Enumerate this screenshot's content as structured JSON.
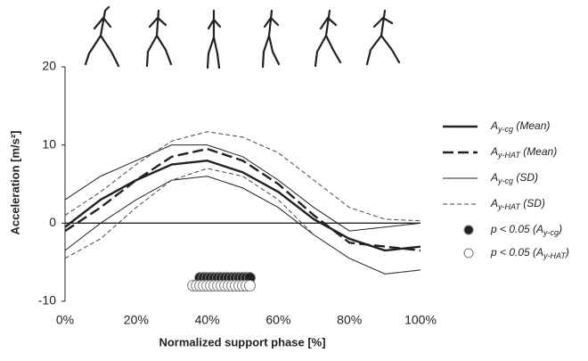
{
  "chart_data": {
    "type": "line",
    "ylabel": "Acceleration [m/s²]",
    "xlabel": "Normalized support phase [%]",
    "x": [
      0,
      10,
      20,
      30,
      40,
      50,
      60,
      70,
      80,
      90,
      100
    ],
    "xlim": [
      0,
      100
    ],
    "xticks": [
      {
        "value": 0,
        "label": "0%"
      },
      {
        "value": 20,
        "label": "20%"
      },
      {
        "value": 40,
        "label": "40%"
      },
      {
        "value": 60,
        "label": "60%"
      },
      {
        "value": 80,
        "label": "80%"
      },
      {
        "value": 100,
        "label": "100%"
      }
    ],
    "ylim": [
      -10,
      20
    ],
    "yticks": [
      -10,
      0,
      10,
      20
    ],
    "series": [
      {
        "name": {
          "symbol": "A",
          "sub": "y-cg",
          "suffix": " (Mean)"
        },
        "color": "#222",
        "style": "solid-thick",
        "values": [
          -0.5,
          3,
          5.5,
          7.5,
          8,
          6.5,
          4,
          0.5,
          -2,
          -3.5,
          -3
        ]
      },
      {
        "name": {
          "symbol": "A",
          "sub": "y-HAT",
          "suffix": " (Mean)"
        },
        "color": "#222",
        "style": "dashed-thick",
        "values": [
          -1,
          2,
          5.5,
          8.5,
          9.5,
          8,
          5,
          1,
          -2.5,
          -3,
          -3.5
        ]
      },
      {
        "name": {
          "symbol": "A",
          "sub": "y-cg",
          "suffix": " (SD)"
        },
        "color": "#222",
        "style": "solid-thin",
        "upper": [
          3,
          6,
          8,
          10,
          10,
          8.5,
          5.5,
          2,
          -1,
          -0.5,
          0
        ],
        "lower": [
          -3.5,
          0,
          3,
          5.5,
          6,
          4.5,
          2,
          -1.5,
          -4.5,
          -6.5,
          -6
        ]
      },
      {
        "name": {
          "symbol": "A",
          "sub": "y-HAT",
          "suffix": " (SD)"
        },
        "color": "#444",
        "style": "dashed-thin",
        "upper": [
          1,
          4,
          7.5,
          10.5,
          11.7,
          11,
          9,
          5.5,
          2,
          0.5,
          0.3
        ],
        "lower": [
          -4.5,
          -2,
          2,
          5.5,
          7,
          6,
          3,
          -1.5,
          -4.5,
          -6.5,
          -6
        ]
      }
    ],
    "significance": [
      {
        "name": {
          "prefix": "p < 0.05 (A",
          "sub": "y-cg",
          "suffix": ")"
        },
        "fill": "#222",
        "y": -7,
        "x": [
          38,
          39,
          40,
          41,
          42,
          43,
          44,
          45,
          46,
          47,
          48,
          49,
          50,
          51,
          52
        ]
      },
      {
        "name": {
          "prefix": "p < 0.05 (A",
          "sub": "y-HAT",
          "suffix": ")"
        },
        "fill": "#fff",
        "y": -8,
        "x": [
          36,
          37,
          38,
          39,
          40,
          41,
          42,
          43,
          44,
          45,
          46,
          47,
          48,
          49,
          50,
          51,
          52
        ]
      }
    ]
  }
}
